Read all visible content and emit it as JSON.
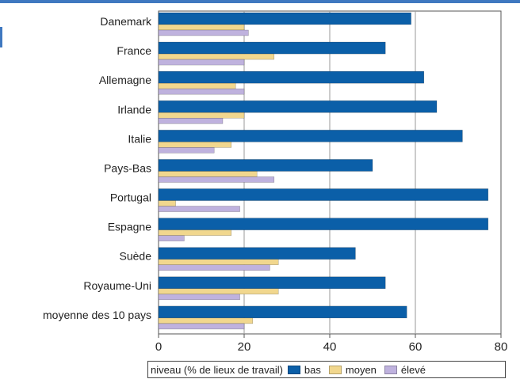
{
  "chart_data": {
    "type": "bar",
    "orientation": "horizontal",
    "categories": [
      "Danemark",
      "France",
      "Allemagne",
      "Irlande",
      "Italie",
      "Pays-Bas",
      "Portugal",
      "Espagne",
      "Suède",
      "Royaume-Uni",
      "moyenne des 10 pays"
    ],
    "series": [
      {
        "name": "bas",
        "color": "#0b5fa8",
        "values": [
          59,
          53,
          62,
          65,
          71,
          50,
          77,
          77,
          46,
          53,
          58
        ]
      },
      {
        "name": "moyen",
        "color": "#f1d78e",
        "values": [
          20,
          27,
          18,
          20,
          17,
          23,
          4,
          17,
          28,
          28,
          22
        ]
      },
      {
        "name": "élevé",
        "color": "#bfb2de",
        "values": [
          21,
          20,
          20,
          15,
          13,
          27,
          19,
          6,
          26,
          19,
          20
        ]
      }
    ],
    "x_ticks": [
      "0",
      "20",
      "40",
      "60",
      "80"
    ],
    "xlim": [
      0,
      80
    ],
    "grid": true,
    "legend": {
      "title": "niveau (% de lieux de travail)",
      "placement": "bottom"
    }
  }
}
